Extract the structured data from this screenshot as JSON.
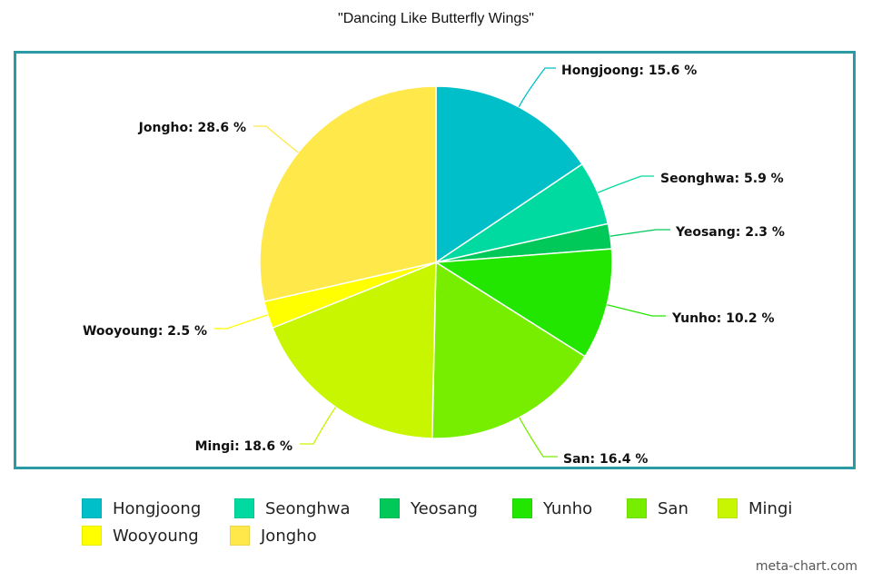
{
  "chart_data": {
    "type": "pie",
    "title": "\"Dancing Like Butterfly Wings\"",
    "slices": [
      {
        "name": "Hongjoong",
        "value": 15.6,
        "color": "#00bfc8",
        "label": "Hongjoong: 15.6 %"
      },
      {
        "name": "Seonghwa",
        "value": 5.9,
        "color": "#00d9a0",
        "label": "Seonghwa: 5.9 %"
      },
      {
        "name": "Yeosang",
        "value": 2.3,
        "color": "#00c95a",
        "label": "Yeosang: 2.3 %"
      },
      {
        "name": "Yunho",
        "value": 10.2,
        "color": "#22e600",
        "label": "Yunho: 10.2 %"
      },
      {
        "name": "San",
        "value": 16.4,
        "color": "#77ee00",
        "label": "San: 16.4 %"
      },
      {
        "name": "Mingi",
        "value": 18.6,
        "color": "#c8f500",
        "label": "Mingi: 18.6 %"
      },
      {
        "name": "Wooyoung",
        "value": 2.5,
        "color": "#ffff00",
        "label": "Wooyoung: 2.5 %"
      },
      {
        "name": "Jongho",
        "value": 28.6,
        "color": "#ffe84a",
        "label": "Jongho: 28.6 %"
      }
    ],
    "legend_position": "bottom",
    "frame_color": "#2a9aa3"
  },
  "watermark": "meta-chart.com"
}
